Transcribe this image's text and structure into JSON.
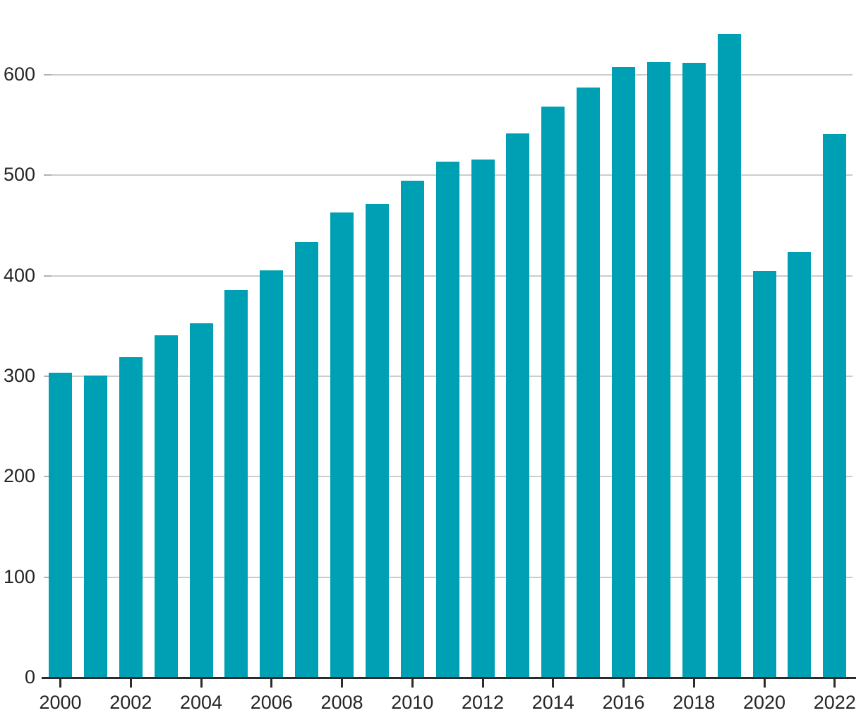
{
  "chart_data": {
    "type": "bar",
    "title": "",
    "subtitle": "",
    "xlabel": "",
    "ylabel": "",
    "categories": [
      "2000",
      "2001",
      "2002",
      "2003",
      "2004",
      "2005",
      "2006",
      "2007",
      "2008",
      "2009",
      "2010",
      "2011",
      "2012",
      "2013",
      "2014",
      "2015",
      "2016",
      "2017",
      "2018",
      "2019",
      "2020",
      "2021",
      "2022"
    ],
    "values": [
      303,
      300,
      318,
      340,
      352,
      385,
      405,
      433,
      462,
      471,
      494,
      513,
      515,
      541,
      568,
      587,
      607,
      612,
      611,
      640,
      404,
      423,
      540
    ],
    "ylim": [
      0,
      674
    ],
    "yticks": [
      0,
      100,
      200,
      300,
      400,
      500,
      600
    ],
    "ytick_labels": [
      "0",
      "100",
      "200",
      "300",
      "400",
      "500",
      "600"
    ],
    "xtick_labels": [
      "2000",
      "2002",
      "2004",
      "2006",
      "2008",
      "2010",
      "2012",
      "2014",
      "2016",
      "2018",
      "2020",
      "2022"
    ],
    "grid": true,
    "legend_position": "none",
    "colors": {
      "bar": "#00A0B4",
      "gridline": "#cccccc",
      "gridline_start": "#b3b3b3",
      "axis": "#2b2b2b",
      "label": "#262626"
    }
  }
}
